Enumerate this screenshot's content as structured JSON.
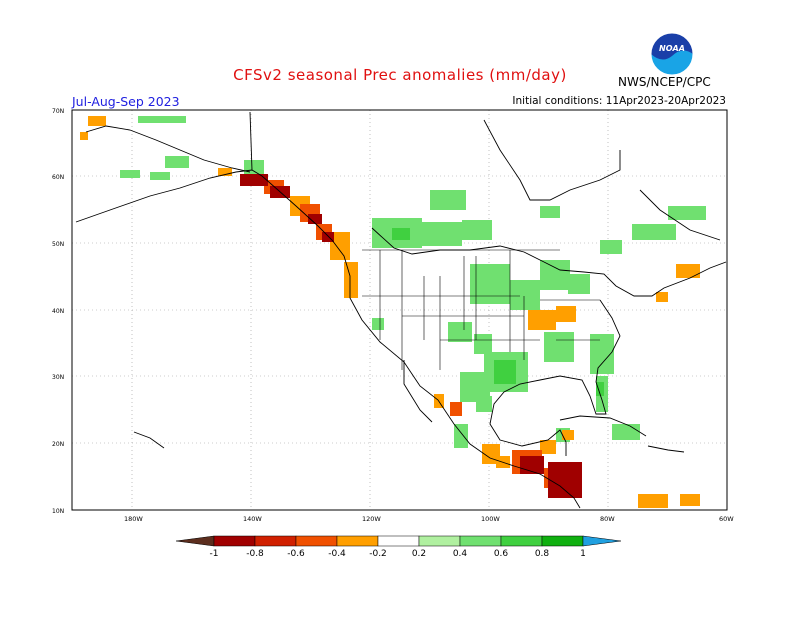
{
  "title": "CFSv2 seasonal Prec anomalies (mm/day)",
  "season": "Jul-Aug-Sep 2023",
  "initial_conditions": "Initial conditions: 11Apr2023-20Apr2023",
  "agency": "NWS/NCEP/CPC",
  "logo_text": "NOAA",
  "lat_labels": [
    "70N",
    "60N",
    "50N",
    "40N",
    "30N",
    "20N",
    "10N"
  ],
  "lon_labels": [
    "180W",
    "140W",
    "120W",
    "100W",
    "80W",
    "60W"
  ],
  "colorbar": {
    "labels": [
      "-1",
      "-0.8",
      "-0.6",
      "-0.4",
      "-0.2",
      "0.2",
      "0.4",
      "0.6",
      "0.8",
      "1"
    ],
    "colors": [
      "#5c2e1e",
      "#a00000",
      "#d02000",
      "#f05000",
      "#ff9f00",
      "#ffffff",
      "#b0f0a0",
      "#70e070",
      "#40d040",
      "#10b010",
      "#20a0e0"
    ]
  }
}
